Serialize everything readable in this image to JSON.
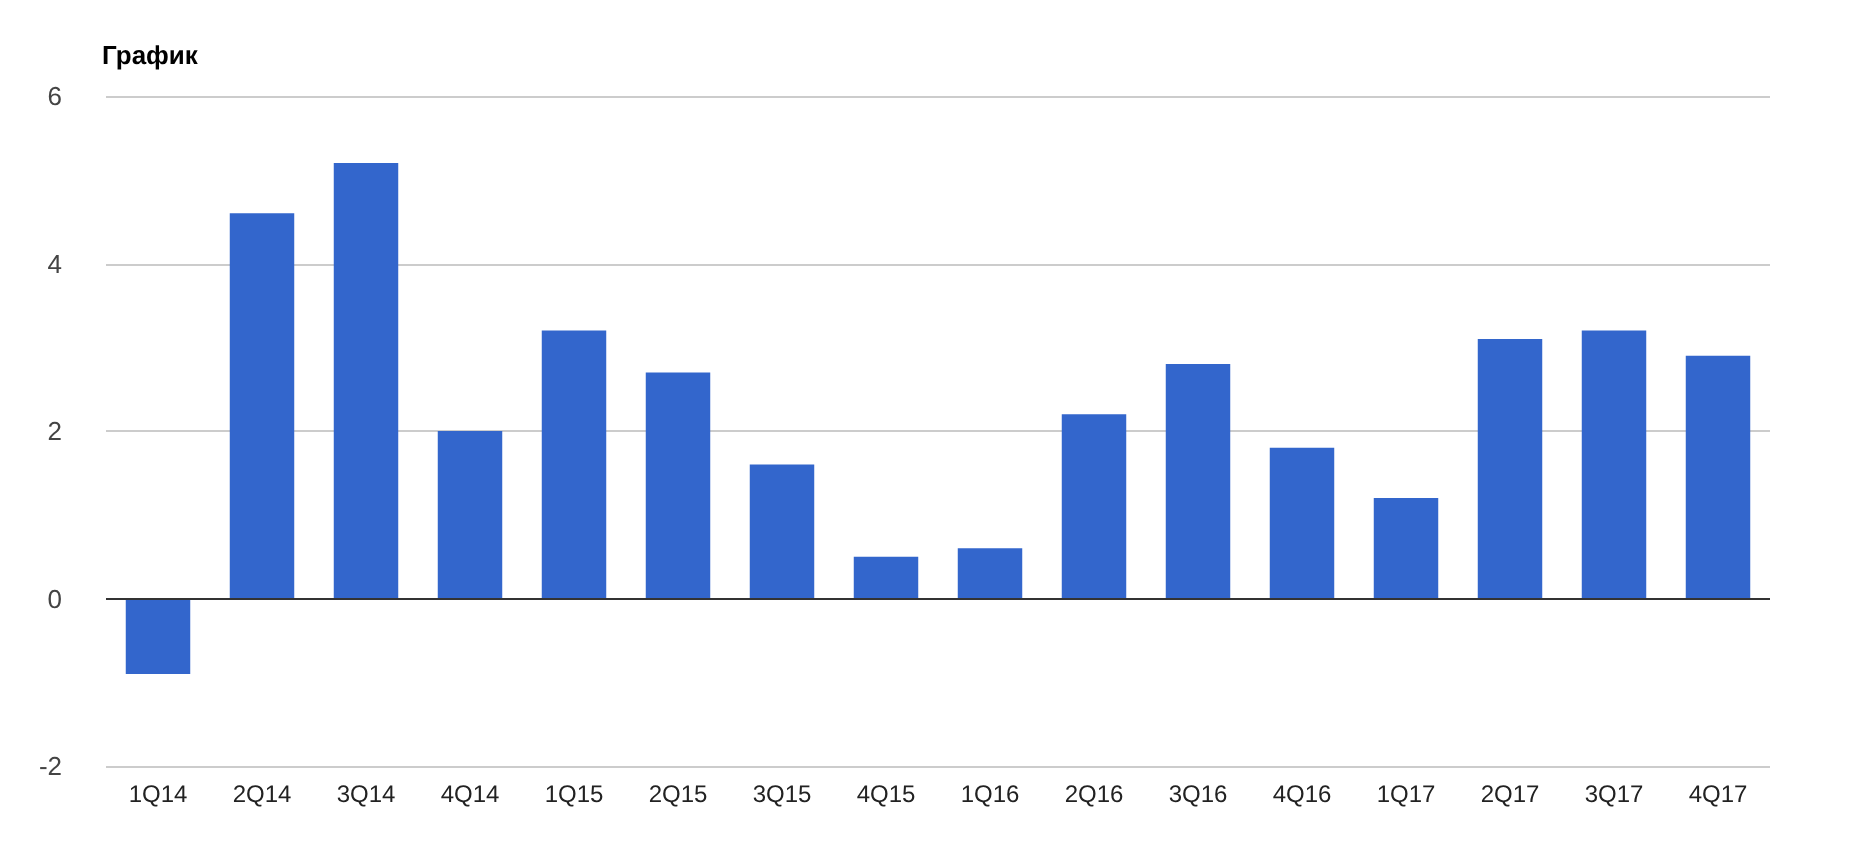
{
  "chart_data": {
    "type": "bar",
    "title": "График",
    "categories": [
      "1Q14",
      "2Q14",
      "3Q14",
      "4Q14",
      "1Q15",
      "2Q15",
      "3Q15",
      "4Q15",
      "1Q16",
      "2Q16",
      "3Q16",
      "4Q16",
      "1Q17",
      "2Q17",
      "3Q17",
      "4Q17"
    ],
    "values": [
      -0.9,
      4.6,
      5.2,
      2.0,
      3.2,
      2.7,
      1.6,
      0.5,
      0.6,
      2.2,
      2.8,
      1.8,
      1.2,
      3.1,
      3.2,
      2.9
    ],
    "color": "#3366cc",
    "ylim": [
      -2,
      6
    ],
    "yticks": [
      -2,
      0,
      2,
      4,
      6
    ],
    "grid": "y"
  }
}
